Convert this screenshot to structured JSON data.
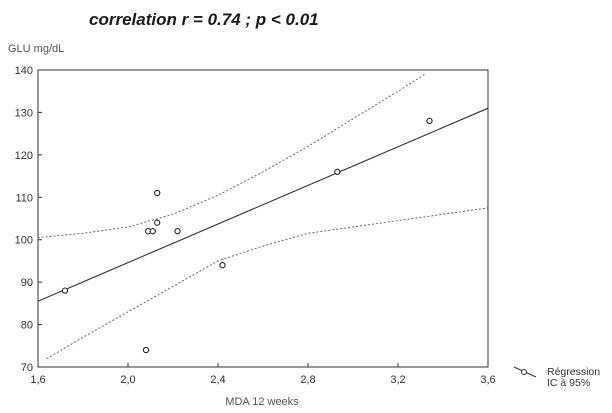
{
  "chart_data": {
    "type": "scatter",
    "title": "correlation r = 0.74 ; p < 0.01",
    "xlabel": "MDA 12 weeks",
    "ylabel": "GLU mg/dL",
    "xlim": [
      1.6,
      3.6
    ],
    "ylim": [
      70,
      140
    ],
    "x_ticks": [
      "1,6",
      "2,0",
      "2,4",
      "2,8",
      "3,2",
      "3,6"
    ],
    "y_ticks": [
      "70",
      "80",
      "90",
      "100",
      "110",
      "120",
      "130",
      "140"
    ],
    "grid": false,
    "legend_placement": "bottom-right",
    "points": [
      {
        "x": 1.72,
        "y": 88
      },
      {
        "x": 2.08,
        "y": 74
      },
      {
        "x": 2.09,
        "y": 102
      },
      {
        "x": 2.11,
        "y": 102
      },
      {
        "x": 2.13,
        "y": 104
      },
      {
        "x": 2.13,
        "y": 111
      },
      {
        "x": 2.22,
        "y": 102
      },
      {
        "x": 2.42,
        "y": 94
      },
      {
        "x": 2.93,
        "y": 116
      },
      {
        "x": 3.34,
        "y": 128
      }
    ],
    "regression": {
      "x": [
        1.6,
        3.6
      ],
      "y": [
        85.5,
        131
      ]
    },
    "ci_upper": {
      "x": [
        1.6,
        1.8,
        2.0,
        2.2,
        2.4,
        2.6,
        2.8,
        3.0,
        3.2,
        3.32
      ],
      "y": [
        100.5,
        101.5,
        103,
        106,
        110.5,
        116,
        122,
        128.5,
        135,
        139
      ]
    },
    "ci_lower": {
      "x": [
        1.64,
        1.8,
        2.0,
        2.2,
        2.4,
        2.6,
        2.8,
        3.0,
        3.2,
        3.4,
        3.6
      ],
      "y": [
        72,
        77,
        83,
        89,
        95,
        98.5,
        101.5,
        103,
        104.5,
        106,
        107.5
      ]
    },
    "legend": [
      {
        "label": "Régression",
        "marker": "line-circle"
      },
      {
        "label": "IC à 95%",
        "marker": "dotted"
      }
    ],
    "colors": {
      "line": "#333333",
      "ci": "#666666",
      "point": "#222222",
      "frame": "#333333"
    }
  }
}
